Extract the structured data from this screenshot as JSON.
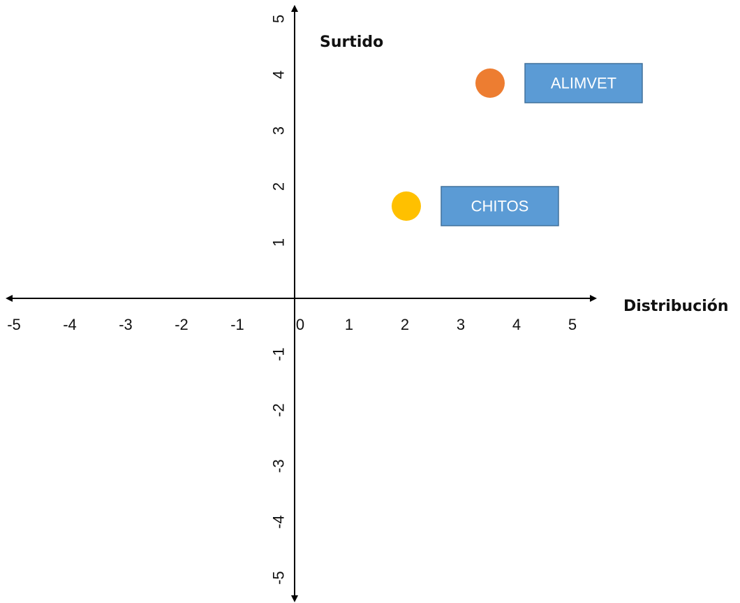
{
  "chart_data": {
    "type": "scatter",
    "xlabel": "Distribución",
    "ylabel": "Surtido",
    "xlim": [
      -5,
      5
    ],
    "ylim": [
      -5,
      5
    ],
    "x_ticks": [
      "-5",
      "-4",
      "-3",
      "-2",
      "-1",
      "0",
      "1",
      "2",
      "3",
      "4",
      "5"
    ],
    "y_ticks": [
      "-5",
      "-4",
      "-3",
      "-2",
      "-1",
      "1",
      "2",
      "3",
      "4",
      "5"
    ],
    "grid": false,
    "points": [
      {
        "name": "ALIMVET",
        "x": 3.5,
        "y": 3.85,
        "color": "#ED7D31",
        "label_color": "#5B9BD5"
      },
      {
        "name": "CHITOS",
        "x": 2.0,
        "y": 1.65,
        "color": "#FFC000",
        "label_color": "#5B9BD5"
      }
    ]
  }
}
